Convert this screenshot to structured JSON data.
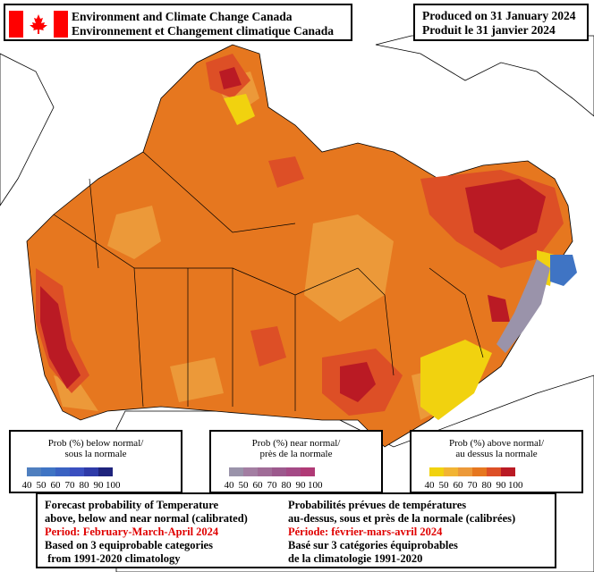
{
  "header": {
    "org_en": "Environment and Climate Change Canada",
    "org_fr": "Environnement et Changement climatique Canada"
  },
  "produced": {
    "en": "Produced on 31 January 2024",
    "fr": "Produit le 31 janvier 2024"
  },
  "legends": [
    {
      "title_en": "Prob (%) below normal/",
      "title_fr": "sous la normale",
      "ticks": [
        "40",
        "50",
        "60",
        "70",
        "80",
        "90",
        "100"
      ],
      "colors": [
        "#4f7fbf",
        "#3f74c4",
        "#3a62c2",
        "#3a4fc0",
        "#2e3aa8",
        "#1e237c"
      ]
    },
    {
      "title_en": "Prob (%) near normal/",
      "title_fr": "près de la normale",
      "ticks": [
        "40",
        "50",
        "60",
        "70",
        "80",
        "90",
        "100"
      ],
      "colors": [
        "#9a93aa",
        "#a37ea2",
        "#a06c97",
        "#9c598d",
        "#a44a86",
        "#b03a76"
      ]
    },
    {
      "title_en": "Prob (%) above normal/",
      "title_fr": "au dessus la normale",
      "ticks": [
        "40",
        "50",
        "60",
        "70",
        "80",
        "90",
        "100"
      ],
      "colors": [
        "#f1d20f",
        "#f2b433",
        "#ec9939",
        "#e6771f",
        "#dd4f26",
        "#ba1a24"
      ]
    }
  ],
  "info": {
    "en": {
      "line1": "Forecast probability of Temperature",
      "line2": "above, below and near normal (calibrated)",
      "period": "Period: February-March-April 2024",
      "line4": "Based on 3 equiprobable categories",
      "line5": " from 1991-2020 climatology"
    },
    "fr": {
      "line1": "Probabilités prévues de températures",
      "line2": "au-dessus, sous et près de la normale (calibrées)",
      "period": "Période: février-mars-avril 2024",
      "line4": "Basé sur 3 catégories équiprobables",
      "line5": "de la climatologie 1991-2020"
    }
  },
  "colors": {
    "flag_red": "#ff0000",
    "period_red": "#e00000",
    "base_orange": "#e6771f",
    "light_orange": "#ec9939",
    "red": "#dd4f26",
    "dark_red": "#ba1a24",
    "yellow": "#f1d20f",
    "gray_near": "#9a93aa",
    "blue_below": "#3f74c4"
  }
}
